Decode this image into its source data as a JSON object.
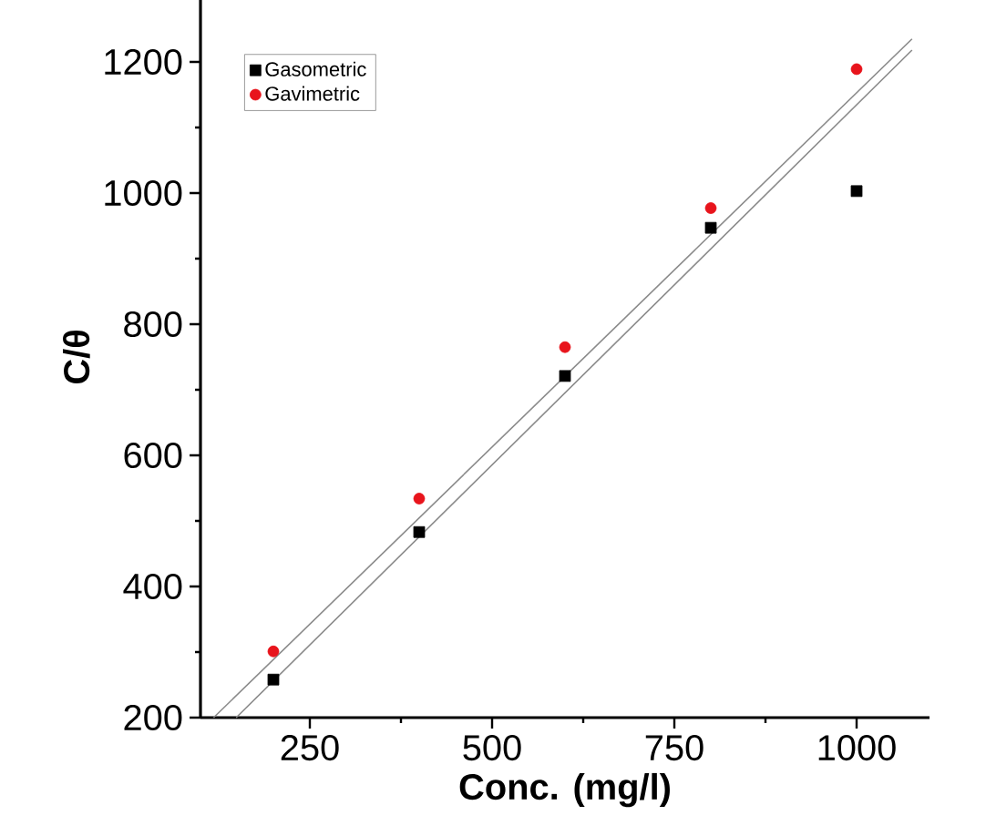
{
  "chart_data": {
    "type": "scatter",
    "xlabel": "Conc. (mg/l)",
    "ylabel": "C/θ",
    "xlim": [
      100,
      1100
    ],
    "ylim": [
      200,
      1300
    ],
    "xticks": [
      250,
      500,
      750,
      1000
    ],
    "yticks": [
      200,
      400,
      600,
      800,
      1000,
      1200
    ],
    "legend": "top left",
    "grid": false,
    "series": [
      {
        "name": "Gasometric",
        "color": "#000000",
        "marker": "square",
        "x": [
          200,
          400,
          600,
          800,
          1000
        ],
        "values": [
          258,
          483,
          721,
          947,
          1003
        ]
      },
      {
        "name": "Gavimetric",
        "color": "#e8141c",
        "marker": "circle",
        "x": [
          200,
          400,
          600,
          800,
          1000
        ],
        "values": [
          301,
          534,
          765,
          977,
          1189
        ]
      },
      {
        "type": "line",
        "color": "#8a8a8a",
        "marker": "none",
        "x": [
          118,
          1076
        ],
        "values": [
          200,
          1235
        ]
      },
      {
        "type": "line",
        "color": "#8a8a8a",
        "marker": "none",
        "x": [
          149,
          1076
        ],
        "values": [
          200,
          1218
        ]
      }
    ]
  }
}
